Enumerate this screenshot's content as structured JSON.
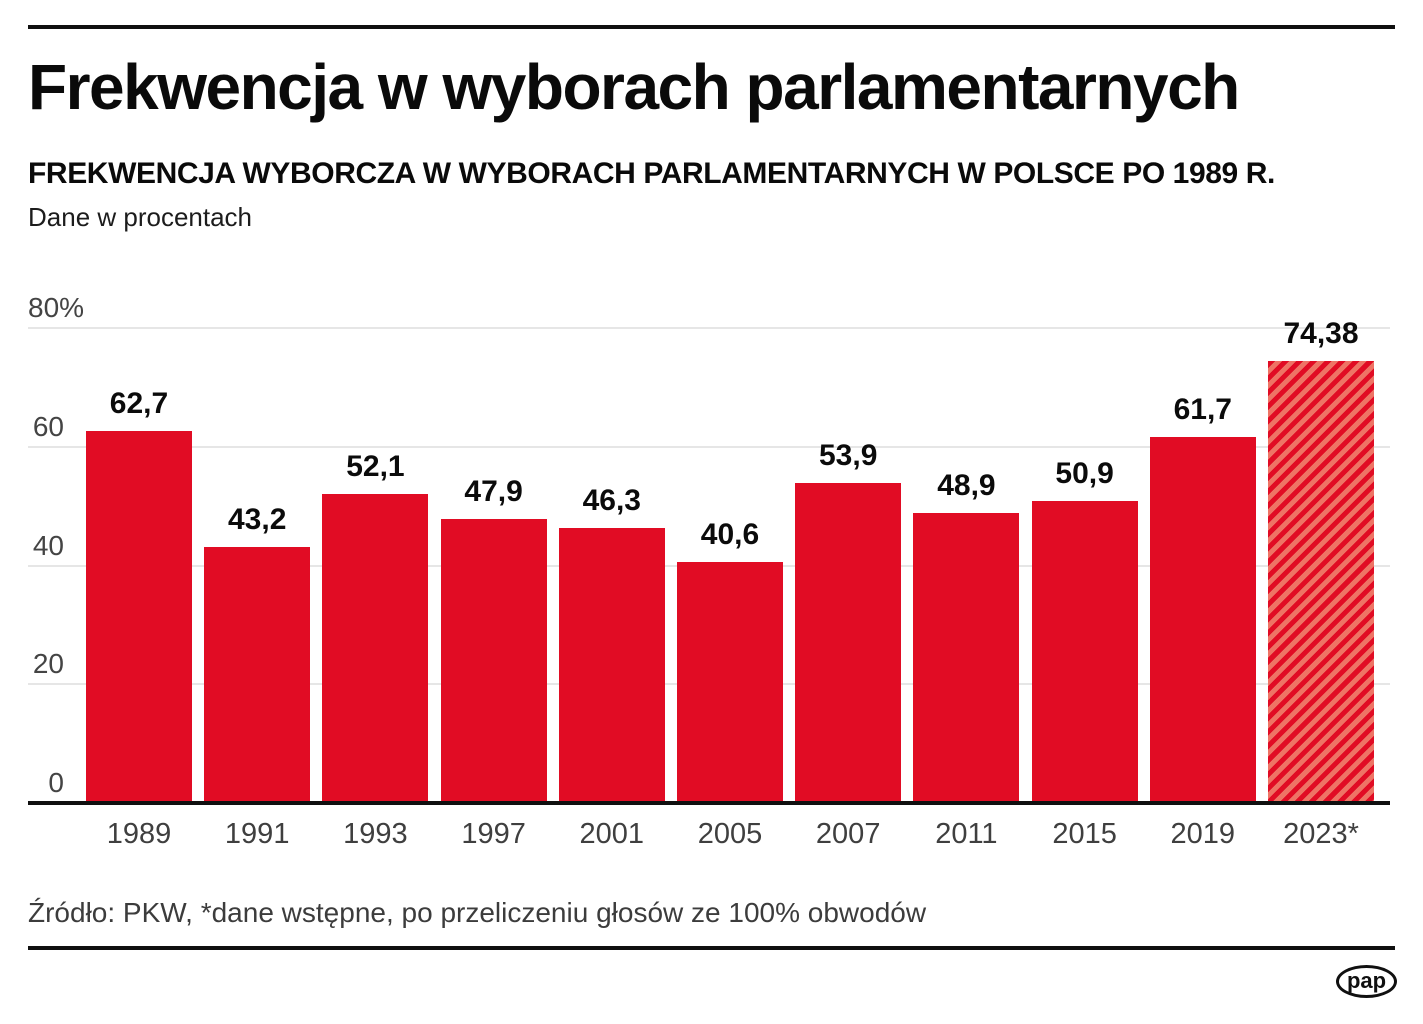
{
  "header": {
    "title": "Frekwencja w wyborach parlamentarnych",
    "subtitle": "FREKWENCJA WYBORCZA W WYBORACH PARLAMENTARNYCH W POLSCE PO 1989 R.",
    "note": "Dane w procentach"
  },
  "chart_data": {
    "type": "bar",
    "title": "Frekwencja w wyborach parlamentarnych",
    "xlabel": "",
    "ylabel": "Dane w procentach",
    "categories": [
      "1989",
      "1991",
      "1993",
      "1997",
      "2001",
      "2005",
      "2007",
      "2011",
      "2015",
      "2019",
      "2023*"
    ],
    "values": [
      62.7,
      43.2,
      52.1,
      47.9,
      46.3,
      40.6,
      53.9,
      48.9,
      50.9,
      61.7,
      74.38
    ],
    "value_labels": [
      "62,7",
      "43,2",
      "52,1",
      "47,9",
      "46,3",
      "40,6",
      "53,9",
      "48,9",
      "50,9",
      "61,7",
      "74,38"
    ],
    "ylim": [
      0,
      80
    ],
    "yticks": [
      0,
      20,
      40,
      60,
      80
    ],
    "ytick_labels": [
      "0",
      "20",
      "40",
      "60",
      "80%"
    ],
    "grid": true,
    "legend": "none",
    "bar_color": "#e10c24",
    "hatch_light_color": "#ee7465",
    "hatched_category": "2023*"
  },
  "footer": {
    "source": "Źródło: PKW, *dane wstępne, po przeliczeniu głosów ze 100% obwodów",
    "logo_text": "pap"
  }
}
